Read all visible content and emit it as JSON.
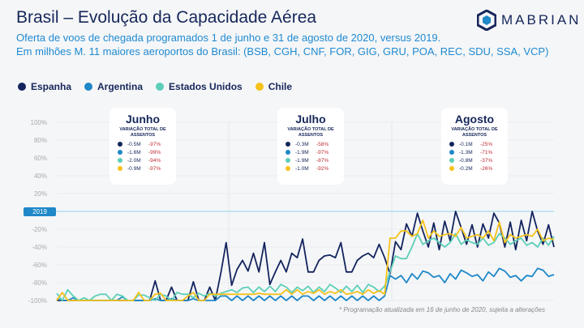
{
  "header": {
    "title": "Brasil – Evolução da Capacidade Aérea",
    "subtitle1": "Oferta de voos de chegada programados 1 de junho e 31 de agosto de 2020, versus 2019.",
    "subtitle2": "Em milhões M. 11 maiores aeroportos do Brasil: (BSB, CGH, CNF, FOR, GIG, GRU, POA, REC, SDU, SSA, VCP)"
  },
  "logo": {
    "text": "MABRIAN",
    "icon": "hexagon-logo-icon"
  },
  "colors": {
    "Espanha": "#13245e",
    "Argentina": "#1e88c8",
    "Estados Unidos": "#5ccfb8",
    "Chile": "#f5c21b"
  },
  "boxes": [
    {
      "month": "Junho",
      "label": "VARIAÇÃO TOTAL DE ASSENTOS",
      "rows": [
        [
          "-0.5M",
          "-97%"
        ],
        [
          "-1.6M",
          "-99%"
        ],
        [
          "-2.0M",
          "-94%"
        ],
        [
          "-0.9M",
          "-97%"
        ]
      ]
    },
    {
      "month": "Julho",
      "label": "VARIAÇÃO TOTAL DE ASSENTOS",
      "rows": [
        [
          "-0.3M",
          "-58%"
        ],
        [
          "-1.9M",
          "-97%"
        ],
        [
          "-1.9M",
          "-87%"
        ],
        [
          "-1.0M",
          "-92%"
        ]
      ]
    },
    {
      "month": "Agosto",
      "label": "VARIAÇÃO TOTAL DE ASSENTOS",
      "rows": [
        [
          "-0.1M",
          "-25%"
        ],
        [
          "-1.3M",
          "-71%"
        ],
        [
          "-0.8M",
          "-37%"
        ],
        [
          "-0.2M",
          "-26%"
        ]
      ]
    }
  ],
  "note": "* Programação atualizada em 16 de junho de 2020, sujeita a alterações",
  "chart_data": {
    "type": "line",
    "x_range": [
      "1 jun 2020",
      "31 ago 2020"
    ],
    "ylim": [
      -100,
      100
    ],
    "grid": true,
    "legend": "top-left",
    "yticks": [
      "100%",
      "80%",
      "60%",
      "40%",
      "20%",
      "2019",
      "-20%",
      "-40%",
      "-60%",
      "-80%",
      "-100%"
    ],
    "reference_line": {
      "label": "2019",
      "value": 0
    },
    "series": [
      {
        "name": "Espanha",
        "values": [
          -100,
          -100,
          -100,
          -100,
          -100,
          -100,
          -100,
          -100,
          -100,
          -100,
          -100,
          -100,
          -100,
          -100,
          -100,
          -100,
          -100,
          -100,
          -78,
          -100,
          -100,
          -85,
          -100,
          -100,
          -100,
          -79,
          -100,
          -100,
          -85,
          -100,
          -70,
          -35,
          -83,
          -65,
          -55,
          -67,
          -47,
          -68,
          -35,
          -82,
          -68,
          -55,
          -68,
          -47,
          -52,
          -31,
          -68,
          -68,
          -55,
          -50,
          -49,
          -52,
          -35,
          -68,
          -68,
          -55,
          -50,
          -47,
          -52,
          -37,
          -52,
          -70,
          -34,
          -43,
          -14,
          -28,
          -2,
          -22,
          -40,
          -13,
          -43,
          -11,
          -33,
          0,
          -18,
          -37,
          -15,
          -40,
          -14,
          -30,
          -2,
          -13,
          -40,
          -12,
          -43,
          -10,
          -33,
          0,
          -22,
          -37,
          -15,
          -40
        ]
      },
      {
        "name": "Argentina",
        "values": [
          -98,
          -100,
          -100,
          -97,
          -100,
          -100,
          -100,
          -100,
          -100,
          -100,
          -100,
          -100,
          -96,
          -100,
          -100,
          -100,
          -100,
          -100,
          -98,
          -100,
          -100,
          -98,
          -100,
          -100,
          -100,
          -98,
          -100,
          -100,
          -100,
          -100,
          -95,
          -95,
          -100,
          -95,
          -100,
          -95,
          -100,
          -95,
          -100,
          -95,
          -100,
          -95,
          -100,
          -95,
          -100,
          -95,
          -95,
          -100,
          -95,
          -100,
          -95,
          -100,
          -95,
          -100,
          -95,
          -100,
          -95,
          -100,
          -95,
          -100,
          -95,
          -72,
          -76,
          -72,
          -80,
          -70,
          -76,
          -67,
          -69,
          -74,
          -72,
          -80,
          -70,
          -76,
          -66,
          -69,
          -73,
          -71,
          -78,
          -68,
          -73,
          -64,
          -67,
          -74,
          -72,
          -78,
          -72,
          -73,
          -64,
          -66,
          -73,
          -71
        ]
      },
      {
        "name": "Estados Unidos",
        "values": [
          -92,
          -100,
          -88,
          -95,
          -100,
          -97,
          -100,
          -95,
          -93,
          -93,
          -100,
          -93,
          -95,
          -100,
          -100,
          -94,
          -94,
          -97,
          -100,
          -93,
          -95,
          -100,
          -91,
          -93,
          -93,
          -97,
          -92,
          -95,
          -92,
          -95,
          -92,
          -90,
          -88,
          -91,
          -86,
          -85,
          -91,
          -85,
          -90,
          -84,
          -90,
          -82,
          -85,
          -91,
          -85,
          -89,
          -84,
          -91,
          -85,
          -90,
          -82,
          -86,
          -91,
          -84,
          -90,
          -83,
          -91,
          -82,
          -85,
          -90,
          -84,
          -68,
          -50,
          -53,
          -53,
          -40,
          -25,
          -37,
          -33,
          -30,
          -35,
          -40,
          -35,
          -25,
          -37,
          -32,
          -35,
          -37,
          -30,
          -38,
          -35,
          -25,
          -30,
          -37,
          -33,
          -30,
          -38,
          -35,
          -40,
          -30,
          -38,
          -28
        ]
      },
      {
        "name": "Chile",
        "values": [
          -100,
          -91,
          -100,
          -100,
          -100,
          -100,
          -100,
          -100,
          -100,
          -100,
          -100,
          -100,
          -100,
          -100,
          -100,
          -91,
          -100,
          -100,
          -93,
          -92,
          -100,
          -100,
          -100,
          -100,
          -95,
          -91,
          -100,
          -100,
          -93,
          -93,
          -93,
          -93,
          -93,
          -93,
          -93,
          -93,
          -93,
          -92,
          -93,
          -93,
          -93,
          -93,
          -88,
          -93,
          -88,
          -93,
          -90,
          -92,
          -88,
          -93,
          -90,
          -92,
          -88,
          -93,
          -92,
          -90,
          -93,
          -88,
          -92,
          -89,
          -93,
          -30,
          -30,
          -22,
          -22,
          -28,
          -25,
          -10,
          -30,
          -22,
          -28,
          -26,
          -25,
          -28,
          -18,
          -30,
          -28,
          -26,
          -30,
          -22,
          -33,
          -12,
          -35,
          -26,
          -30,
          -28,
          -26,
          -28,
          -20,
          -33,
          -30,
          -32
        ]
      }
    ]
  }
}
